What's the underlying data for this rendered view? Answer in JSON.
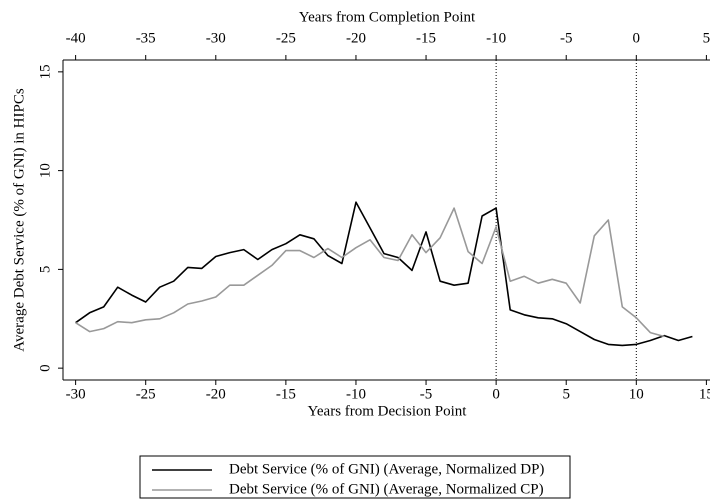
{
  "chart_data": {
    "type": "line",
    "xlabel": "Years from Decision Point",
    "x2label": "Years from Completion Point",
    "ylabel": "Average Debt Service (% of GNI) in HIPCs",
    "xlim": [
      -30.9,
      15.4
    ],
    "xticks": [
      -30,
      -25,
      -20,
      -15,
      -10,
      -5,
      0,
      5,
      10,
      15
    ],
    "x2lim": [
      -40.9,
      5.4
    ],
    "x2ticks": [
      -40,
      -35,
      -30,
      -25,
      -20,
      -15,
      -10,
      -5,
      0,
      5
    ],
    "ylim": [
      -0.6,
      15.6
    ],
    "yticks": [
      0,
      5,
      10,
      15
    ],
    "vlines": [
      0,
      10
    ],
    "series": [
      {
        "name": "Debt Service (% of GNI) (Average, Normalized DP)",
        "color": "#000000",
        "x": [
          -30,
          -29,
          -28,
          -27,
          -26,
          -25,
          -24,
          -23,
          -22,
          -21,
          -20,
          -19,
          -18,
          -17,
          -16,
          -15,
          -14,
          -13,
          -12,
          -11,
          -10,
          -9,
          -8,
          -7,
          -6,
          -5,
          -4,
          -3,
          -2,
          -1,
          0,
          1,
          2,
          3,
          4,
          5,
          6,
          7,
          8,
          9,
          10,
          11,
          12,
          13,
          14
        ],
        "values": [
          2.3,
          2.8,
          3.1,
          4.1,
          3.7,
          3.35,
          4.1,
          4.4,
          5.1,
          5.05,
          5.65,
          5.85,
          6.0,
          5.5,
          6.0,
          6.3,
          6.75,
          6.55,
          5.7,
          5.3,
          8.4,
          7.1,
          5.8,
          5.6,
          4.95,
          6.9,
          4.4,
          4.2,
          4.3,
          7.7,
          8.1,
          2.95,
          2.7,
          2.55,
          2.5,
          2.25,
          1.85,
          1.45,
          1.2,
          1.15,
          1.2,
          1.4,
          1.65,
          1.4,
          1.6
        ]
      },
      {
        "name": "Debt Service (% of GNI) (Average, Normalized CP)",
        "color": "#999999",
        "x": [
          -30,
          -29,
          -28,
          -27,
          -26,
          -25,
          -24,
          -23,
          -22,
          -21,
          -20,
          -19,
          -18,
          -17,
          -16,
          -15,
          -14,
          -13,
          -12,
          -11,
          -10,
          -9,
          -8,
          -7,
          -6,
          -5,
          -4,
          -3,
          -2,
          -1,
          0,
          1,
          2,
          3,
          4,
          5,
          6,
          7,
          8,
          9,
          10,
          11,
          12
        ],
        "values": [
          2.3,
          1.85,
          2.0,
          2.35,
          2.3,
          2.45,
          2.5,
          2.8,
          3.25,
          3.4,
          3.6,
          4.2,
          4.2,
          4.7,
          5.2,
          5.95,
          5.95,
          5.6,
          6.05,
          5.6,
          6.1,
          6.5,
          5.6,
          5.45,
          6.75,
          5.85,
          6.6,
          8.1,
          5.9,
          5.3,
          7.15,
          4.4,
          4.65,
          4.3,
          4.5,
          4.3,
          3.3,
          6.7,
          7.5,
          3.1,
          2.55,
          1.8,
          1.6
        ]
      }
    ]
  }
}
